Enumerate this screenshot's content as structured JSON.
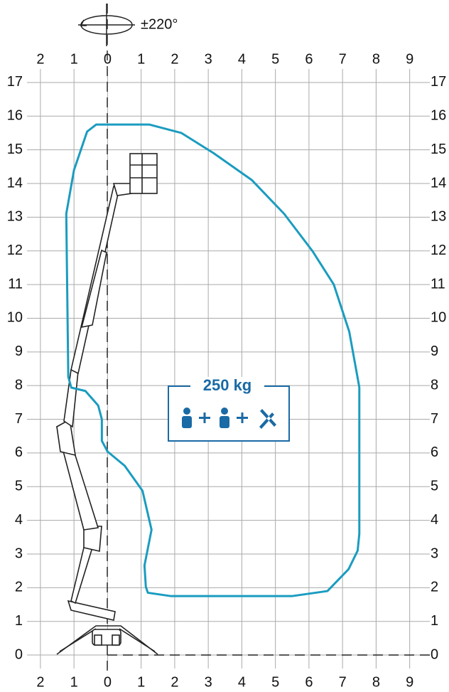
{
  "chart_data": {
    "type": "line",
    "rotation_label": "±220°",
    "load_label": "250 kg",
    "color": "#1a9cc0",
    "xlim": [
      -2.4,
      9.6
    ],
    "ylim": [
      -0.4,
      17.4
    ],
    "xticks": [
      {
        "value": -2,
        "label": "2"
      },
      {
        "value": -1,
        "label": "1"
      },
      0,
      1,
      2,
      3,
      4,
      5,
      6,
      7,
      8,
      9
    ],
    "yticks": [
      0,
      1,
      2,
      3,
      4,
      5,
      6,
      7,
      8,
      9,
      10,
      11,
      12,
      13,
      14,
      15,
      16,
      17
    ],
    "grid": true,
    "x": [
      0,
      1.25,
      2.2,
      3.16,
      4.3,
      5.26,
      6.1,
      6.74,
      7.2,
      7.5,
      7.5,
      7.45,
      7.18,
      6.55,
      5.49,
      1.89,
      1.2,
      1.14,
      1.1,
      1.31,
      1.04,
      0.51,
      0,
      -0.17,
      -0.17,
      -0.28,
      -0.66,
      -1.08,
      -1.17,
      -1.23,
      -1.0,
      -0.61,
      -0.34,
      0
    ],
    "values": [
      15.75,
      15.75,
      15.5,
      14.9,
      14.1,
      13.1,
      12.0,
      11.0,
      9.6,
      7.95,
      3.6,
      3.1,
      2.55,
      1.9,
      1.75,
      1.75,
      1.85,
      2.03,
      2.66,
      3.72,
      4.88,
      5.62,
      6.04,
      6.36,
      7.0,
      7.41,
      7.84,
      7.94,
      8.26,
      13.1,
      14.4,
      15.54,
      15.75,
      15.75
    ]
  }
}
